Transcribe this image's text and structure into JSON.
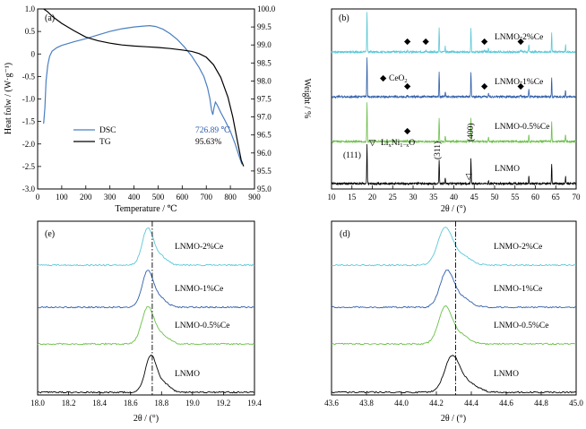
{
  "chart_data": [
    {
      "type": "line",
      "panel_label": "(a)",
      "xlabel": "Temperature / ℃",
      "ylabel": "Heat folw / (W·g⁻¹)",
      "y2label": "Weight / %",
      "xlim": [
        0,
        900
      ],
      "ylim": [
        -3.0,
        1.0
      ],
      "y2lim": [
        95.0,
        100.0
      ],
      "xticks": [
        "0",
        "100",
        "200",
        "300",
        "400",
        "500",
        "600",
        "700",
        "800",
        "900"
      ],
      "yticks": [
        "1.0",
        "0.5",
        "0",
        "-0.5",
        "-1.0",
        "-1.5",
        "-2.0",
        "-2.5",
        "-3.0"
      ],
      "y2ticks": [
        "100.0",
        "99.5",
        "99.0",
        "98.5",
        "98.0",
        "97.5",
        "97.0",
        "96.5",
        "96.0",
        "95.5",
        "95.0"
      ],
      "series": [
        {
          "name": "DSC",
          "axis": "left",
          "color": "#4a7fc1",
          "points": [
            [
              25,
              -1.55
            ],
            [
              30,
              -1.2
            ],
            [
              35,
              -0.6
            ],
            [
              42,
              -0.25
            ],
            [
              50,
              -0.05
            ],
            [
              60,
              0.06
            ],
            [
              80,
              0.14
            ],
            [
              100,
              0.19
            ],
            [
              150,
              0.27
            ],
            [
              200,
              0.34
            ],
            [
              250,
              0.42
            ],
            [
              300,
              0.5
            ],
            [
              350,
              0.56
            ],
            [
              400,
              0.6
            ],
            [
              440,
              0.62
            ],
            [
              465,
              0.63
            ],
            [
              490,
              0.61
            ],
            [
              520,
              0.55
            ],
            [
              550,
              0.45
            ],
            [
              580,
              0.32
            ],
            [
              610,
              0.15
            ],
            [
              640,
              -0.05
            ],
            [
              670,
              -0.3
            ],
            [
              690,
              -0.5
            ],
            [
              705,
              -0.75
            ],
            [
              715,
              -1.0
            ],
            [
              722,
              -1.25
            ],
            [
              727,
              -1.35
            ],
            [
              732,
              -1.2
            ],
            [
              738,
              -1.07
            ],
            [
              745,
              -1.13
            ],
            [
              760,
              -1.3
            ],
            [
              780,
              -1.5
            ],
            [
              800,
              -1.72
            ],
            [
              820,
              -2.0
            ],
            [
              835,
              -2.25
            ],
            [
              848,
              -2.45
            ]
          ]
        },
        {
          "name": "TG",
          "axis": "right",
          "color": "#000000",
          "points": [
            [
              25,
              100.0
            ],
            [
              40,
              99.93
            ],
            [
              60,
              99.8
            ],
            [
              80,
              99.7
            ],
            [
              100,
              99.6
            ],
            [
              150,
              99.4
            ],
            [
              200,
              99.22
            ],
            [
              250,
              99.12
            ],
            [
              300,
              99.05
            ],
            [
              350,
              99.0
            ],
            [
              400,
              98.97
            ],
            [
              450,
              98.95
            ],
            [
              500,
              98.93
            ],
            [
              550,
              98.9
            ],
            [
              600,
              98.86
            ],
            [
              640,
              98.82
            ],
            [
              670,
              98.76
            ],
            [
              700,
              98.66
            ],
            [
              730,
              98.45
            ],
            [
              760,
              98.1
            ],
            [
              790,
              97.55
            ],
            [
              810,
              97.0
            ],
            [
              830,
              96.3
            ],
            [
              845,
              95.8
            ],
            [
              855,
              95.63
            ]
          ]
        }
      ],
      "annotations": {
        "dsc_peak": "726.89 ℃",
        "tg_final": "95.63%"
      },
      "legend": "center-left"
    },
    {
      "type": "line",
      "panel_label": "(b)",
      "xlabel": "2θ / (°)",
      "xlim": [
        10,
        70
      ],
      "xticks": [
        "10",
        "15",
        "20",
        "25",
        "30",
        "35",
        "40",
        "45",
        "50",
        "55",
        "60",
        "65",
        "70"
      ],
      "series": [
        {
          "name": "LNMO-2%Ce",
          "color": "#5bc8d8",
          "offset": 3,
          "ce_markers": [
            28.6,
            33.1,
            47.5,
            56.4
          ]
        },
        {
          "name": "LNMO-1%Ce",
          "color": "#2f5faa",
          "offset": 2,
          "ce_markers": [
            28.6,
            47.5,
            56.4
          ]
        },
        {
          "name": "LNMO-0.5%Ce",
          "color": "#6cc04a",
          "offset": 1,
          "ce_markers": [
            28.6
          ]
        },
        {
          "name": "LNMO",
          "color": "#000000",
          "offset": 0,
          "ce_markers": []
        }
      ],
      "peaks": [
        [
          18.7,
          1.0
        ],
        [
          36.4,
          0.62
        ],
        [
          37.9,
          0.14
        ],
        [
          44.2,
          0.62
        ],
        [
          48.5,
          0.09
        ],
        [
          58.4,
          0.2
        ],
        [
          64.0,
          0.5
        ],
        [
          67.4,
          0.18
        ]
      ],
      "annotations": {
        "ceo2_marker": "◆",
        "ceo2_base": "CeO",
        "ceo2_sub": "2",
        "impurity_marker": "▽",
        "impurity_parts": [
          [
            "Li",
            false
          ],
          [
            "x",
            true
          ],
          [
            "Ni",
            false
          ],
          [
            "1−x",
            true
          ],
          [
            "O",
            false
          ]
        ],
        "hkl": [
          "(111)",
          "(311)",
          "(400)"
        ]
      }
    },
    {
      "type": "line",
      "panel_label": "(e)",
      "xlabel": "2θ / (°)",
      "xlim": [
        18.0,
        19.4
      ],
      "xticks": [
        "18.0",
        "18.2",
        "18.4",
        "18.6",
        "18.8",
        "19.0",
        "19.2",
        "19.4"
      ],
      "reference_line_x": 18.74,
      "series": [
        {
          "name": "LNMO-2%Ce",
          "color": "#5bc8d8",
          "peak_center": 18.71,
          "width": 0.05
        },
        {
          "name": "LNMO-1%Ce",
          "color": "#2f5faa",
          "peak_center": 18.71,
          "width": 0.05
        },
        {
          "name": "LNMO-0.5%Ce",
          "color": "#6cc04a",
          "peak_center": 18.71,
          "width": 0.055
        },
        {
          "name": "LNMO",
          "color": "#000000",
          "peak_center": 18.73,
          "width": 0.05
        }
      ]
    },
    {
      "type": "line",
      "panel_label": "(d)",
      "xlabel": "2θ / (°)",
      "xlim": [
        43.6,
        45.0
      ],
      "xticks": [
        "43.6",
        "43.8",
        "44.0",
        "44.2",
        "44.4",
        "44.6",
        "44.8",
        "45.0"
      ],
      "reference_line_x": 44.31,
      "series": [
        {
          "name": "LNMO-2%Ce",
          "color": "#5bc8d8",
          "peak_center": 44.25,
          "width": 0.06
        },
        {
          "name": "LNMO-1%Ce",
          "color": "#2f5faa",
          "peak_center": 44.26,
          "width": 0.055
        },
        {
          "name": "LNMO-0.5%Ce",
          "color": "#6cc04a",
          "peak_center": 44.25,
          "width": 0.055
        },
        {
          "name": "LNMO",
          "color": "#000000",
          "peak_center": 44.29,
          "width": 0.06
        }
      ]
    }
  ]
}
